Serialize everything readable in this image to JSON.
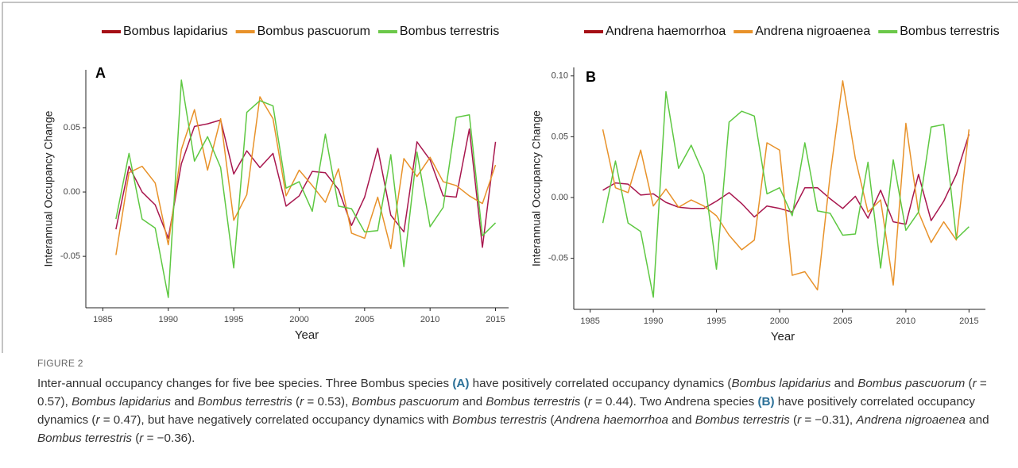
{
  "chart_data": [
    {
      "type": "line",
      "panel_label": "A",
      "ylabel": "Interannual  Occupancy Change",
      "xlabel": "Year",
      "x": [
        1986,
        1987,
        1988,
        1989,
        1990,
        1991,
        1992,
        1993,
        1994,
        1995,
        1996,
        1997,
        1998,
        1999,
        2000,
        2001,
        2002,
        2003,
        2004,
        2005,
        2006,
        2007,
        2008,
        2009,
        2010,
        2011,
        2012,
        2013,
        2014,
        2015
      ],
      "series": [
        {
          "name": "Bombus lapidarius",
          "color": "#a8174e",
          "legend_color": "#a50f15",
          "values": [
            -0.029,
            0.02,
            0.0,
            -0.01,
            -0.036,
            0.022,
            0.051,
            0.053,
            0.056,
            0.014,
            0.032,
            0.019,
            0.03,
            -0.011,
            -0.003,
            0.016,
            0.015,
            0.002,
            -0.026,
            -0.004,
            0.034,
            -0.018,
            -0.031,
            0.039,
            0.025,
            -0.003,
            -0.004,
            0.049,
            -0.043,
            0.039
          ]
        },
        {
          "name": "Bombus pascuorum",
          "color": "#e8922a",
          "legend_color": "#e8922a",
          "values": [
            -0.049,
            0.015,
            0.02,
            0.007,
            -0.041,
            0.033,
            0.064,
            0.017,
            0.057,
            -0.022,
            -0.002,
            0.074,
            0.057,
            -0.003,
            0.017,
            0.005,
            -0.008,
            0.018,
            -0.032,
            -0.036,
            -0.004,
            -0.044,
            0.026,
            0.012,
            0.027,
            0.008,
            0.005,
            -0.003,
            -0.009,
            0.021
          ]
        },
        {
          "name": "Bombus terrestris",
          "color": "#5ec842",
          "legend_color": "#6cc84a",
          "values": [
            -0.021,
            0.03,
            -0.021,
            -0.028,
            -0.082,
            0.087,
            0.024,
            0.043,
            0.019,
            -0.059,
            0.062,
            0.071,
            0.067,
            0.003,
            0.008,
            -0.015,
            0.045,
            -0.011,
            -0.013,
            -0.031,
            -0.03,
            0.029,
            -0.058,
            0.031,
            -0.027,
            -0.012,
            0.058,
            0.06,
            -0.034,
            -0.024
          ]
        }
      ],
      "xlim": [
        1983.7,
        2016
      ],
      "ylim": [
        -0.09,
        0.095
      ],
      "xticks": [
        1985,
        1990,
        1995,
        2000,
        2005,
        2010,
        2015
      ],
      "yticks": [
        -0.05,
        {
          "value": 0,
          "label": "0.00"
        },
        0.05
      ]
    },
    {
      "type": "line",
      "panel_label": "B",
      "ylabel": "Interannual  Occupancy Change",
      "xlabel": "Year",
      "x": [
        1986,
        1987,
        1988,
        1989,
        1990,
        1991,
        1992,
        1993,
        1994,
        1995,
        1996,
        1997,
        1998,
        1999,
        2000,
        2001,
        2002,
        2003,
        2004,
        2005,
        2006,
        2007,
        2008,
        2009,
        2010,
        2011,
        2012,
        2013,
        2014,
        2015
      ],
      "series": [
        {
          "name": "Andrena haemorrhoa",
          "color": "#a8174e",
          "legend_color": "#a50f15",
          "values": [
            0.006,
            0.012,
            0.011,
            0.002,
            0.003,
            -0.004,
            -0.008,
            -0.009,
            -0.009,
            -0.003,
            0.004,
            -0.005,
            -0.016,
            -0.007,
            -0.009,
            -0.012,
            0.008,
            0.008,
            -0.001,
            -0.009,
            0.001,
            -0.017,
            0.006,
            -0.02,
            -0.022,
            0.019,
            -0.019,
            -0.003,
            0.019,
            0.052
          ]
        },
        {
          "name": "Andrena nigroaenea",
          "color": "#e8922a",
          "legend_color": "#e8922a",
          "values": [
            0.056,
            0.008,
            0.004,
            0.039,
            -0.007,
            0.007,
            -0.008,
            -0.002,
            -0.007,
            -0.015,
            -0.031,
            -0.043,
            -0.035,
            0.045,
            0.039,
            -0.064,
            -0.061,
            -0.076,
            0.018,
            0.096,
            0.032,
            -0.012,
            -0.002,
            -0.072,
            0.061,
            -0.012,
            -0.037,
            -0.02,
            -0.035,
            0.056
          ]
        },
        {
          "name": "Bombus terrestris",
          "color": "#5ec842",
          "legend_color": "#6cc84a",
          "values": [
            -0.021,
            0.03,
            -0.021,
            -0.028,
            -0.082,
            0.087,
            0.024,
            0.043,
            0.019,
            -0.059,
            0.062,
            0.071,
            0.067,
            0.003,
            0.008,
            -0.015,
            0.045,
            -0.011,
            -0.013,
            -0.031,
            -0.03,
            0.029,
            -0.058,
            0.031,
            -0.027,
            -0.012,
            0.058,
            0.06,
            -0.034,
            -0.024
          ]
        }
      ],
      "xlim": [
        1983.7,
        2016.3
      ],
      "ylim": [
        -0.092,
        0.107
      ],
      "xticks": [
        1985,
        1990,
        1995,
        2000,
        2005,
        2010,
        2015
      ],
      "yticks": [
        -0.05,
        {
          "value": 0,
          "label": "0.00"
        },
        0.05,
        {
          "value": 0.1,
          "label": "0.10"
        }
      ]
    }
  ],
  "figure_label": "FIGURE 2",
  "caption": {
    "runs": [
      {
        "text": "Inter-annual occupancy changes for five bee species. Three Bombus species "
      },
      {
        "text": "(A)",
        "style": "bold"
      },
      {
        "text": " have positively correlated occupancy dynamics ("
      },
      {
        "text": "Bombus lapidarius",
        "style": "italic"
      },
      {
        "text": " and "
      },
      {
        "text": "Bombus pascuorum",
        "style": "italic"
      },
      {
        "text": " ("
      },
      {
        "text": "r",
        "style": "italic"
      },
      {
        "text": " = 0.57), "
      },
      {
        "text": "Bombus lapidarius",
        "style": "italic"
      },
      {
        "text": " and "
      },
      {
        "text": "Bombus terrestris",
        "style": "italic"
      },
      {
        "text": " ("
      },
      {
        "text": "r",
        "style": "italic"
      },
      {
        "text": " = 0.53), "
      },
      {
        "text": "Bombus pascuorum",
        "style": "italic"
      },
      {
        "text": " and "
      },
      {
        "text": "Bombus terrestris",
        "style": "italic"
      },
      {
        "text": " ("
      },
      {
        "text": "r",
        "style": "italic"
      },
      {
        "text": " = 0.44). Two Andrena species "
      },
      {
        "text": "(B)",
        "style": "bold"
      },
      {
        "text": " have positively correlated occupancy dynamics ("
      },
      {
        "text": "r",
        "style": "italic"
      },
      {
        "text": " = 0.47), but have negatively correlated occupancy dynamics with "
      },
      {
        "text": "Bombus terrestris",
        "style": "italic"
      },
      {
        "text": " ("
      },
      {
        "text": "Andrena haemorrhoa",
        "style": "italic"
      },
      {
        "text": " and "
      },
      {
        "text": "Bombus terrestris",
        "style": "italic"
      },
      {
        "text": " ("
      },
      {
        "text": "r",
        "style": "italic"
      },
      {
        "text": " = −0.31), "
      },
      {
        "text": "Andrena nigroaenea",
        "style": "italic"
      },
      {
        "text": " and "
      },
      {
        "text": "Bombus terrestris",
        "style": "italic"
      },
      {
        "text": " ("
      },
      {
        "text": "r",
        "style": "italic"
      },
      {
        "text": " = −0.36)."
      }
    ]
  }
}
